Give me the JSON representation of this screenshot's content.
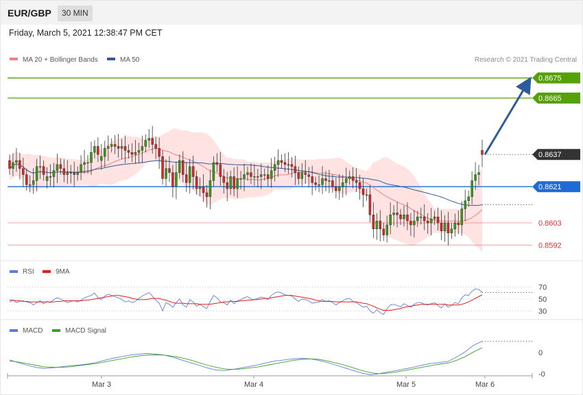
{
  "header": {
    "pair": "EUR/GBP",
    "timeframe": "30 MIN"
  },
  "timestamp": "Friday, March 5, 2021 12:38:47 PM CET",
  "chart_data": [
    {
      "type": "line",
      "panel": "price",
      "legend": [
        {
          "name": "MA 20 + Bollinger Bands",
          "color": "#f08080"
        },
        {
          "name": "MA 50",
          "color": "#2e5b9a"
        }
      ],
      "credit": "Research © 2021 Trading Central",
      "x_labels": [
        "Mar 3",
        "Mar 4",
        "Mar 5",
        "Mar 6"
      ],
      "ylim": [
        0.8587,
        0.868
      ],
      "candles_close": [
        0.863,
        0.8633,
        0.8634,
        0.863,
        0.8627,
        0.8622,
        0.8622,
        0.8624,
        0.8631,
        0.8631,
        0.8627,
        0.8626,
        0.8626,
        0.8629,
        0.8632,
        0.863,
        0.8627,
        0.8628,
        0.8628,
        0.8627,
        0.8628,
        0.8632,
        0.8633,
        0.8633,
        0.8638,
        0.8641,
        0.8637,
        0.8636,
        0.864,
        0.8641,
        0.8642,
        0.8641,
        0.864,
        0.8641,
        0.8639,
        0.8638,
        0.8637,
        0.8638,
        0.8639,
        0.8641,
        0.8644,
        0.8645,
        0.8642,
        0.864,
        0.8636,
        0.8625,
        0.863,
        0.8628,
        0.8621,
        0.8628,
        0.8634,
        0.8627,
        0.8623,
        0.8631,
        0.8626,
        0.862,
        0.8621,
        0.8618,
        0.8616,
        0.8624,
        0.8633,
        0.8632,
        0.8626,
        0.8623,
        0.862,
        0.8626,
        0.862,
        0.8625,
        0.8625,
        0.8627,
        0.8628,
        0.8626,
        0.8626,
        0.8626,
        0.8627,
        0.8627,
        0.8625,
        0.8629,
        0.8632,
        0.8634,
        0.8633,
        0.8632,
        0.8632,
        0.8631,
        0.8628,
        0.8625,
        0.8628,
        0.8627,
        0.8626,
        0.8623,
        0.8622,
        0.8622,
        0.8625,
        0.8624,
        0.8624,
        0.8621,
        0.8619,
        0.8621,
        0.8623,
        0.8625,
        0.8626,
        0.8624,
        0.8623,
        0.862,
        0.8617,
        0.8617,
        0.8607,
        0.86,
        0.8604,
        0.86,
        0.8597,
        0.8602,
        0.8607,
        0.8608,
        0.8607,
        0.8605,
        0.8607,
        0.8604,
        0.8602,
        0.8604,
        0.8606,
        0.8606,
        0.8604,
        0.8603,
        0.8605,
        0.8606,
        0.8603,
        0.8599,
        0.8603,
        0.8598,
        0.86,
        0.8603,
        0.8602,
        0.861,
        0.8614,
        0.8616,
        0.8624,
        0.8627,
        0.8628,
        0.8637
      ],
      "candles_bull": [
        false,
        true,
        true,
        false,
        false,
        false,
        true,
        true,
        true,
        false,
        false,
        true,
        true,
        true,
        true,
        false,
        false,
        true,
        true,
        false,
        true,
        true,
        true,
        true,
        true,
        true,
        false,
        true,
        true,
        true,
        true,
        false,
        false,
        true,
        false,
        false,
        false,
        true,
        true,
        true,
        true,
        true,
        false,
        false,
        false,
        false,
        true,
        false,
        false,
        true,
        true,
        false,
        false,
        true,
        false,
        false,
        true,
        false,
        false,
        true,
        true,
        false,
        false,
        false,
        false,
        true,
        false,
        true,
        true,
        true,
        true,
        false,
        true,
        false,
        true,
        true,
        false,
        true,
        true,
        true,
        false,
        false,
        false,
        false,
        false,
        false,
        true,
        false,
        false,
        false,
        false,
        true,
        true,
        false,
        true,
        false,
        false,
        true,
        true,
        true,
        true,
        false,
        false,
        false,
        false,
        true,
        false,
        false,
        true,
        false,
        false,
        true,
        true,
        true,
        false,
        false,
        true,
        false,
        false,
        true,
        true,
        true,
        false,
        false,
        true,
        true,
        false,
        false,
        true,
        false,
        true,
        true,
        false,
        true,
        true,
        true,
        true,
        true,
        true,
        false
      ],
      "price_levels": [
        {
          "label": "0.8675",
          "value": 0.8675,
          "color": "#56a10a"
        },
        {
          "label": "0.8665",
          "value": 0.8665,
          "color": "#56a10a"
        },
        {
          "label": "0.8637",
          "value": 0.8637,
          "color": "#333333"
        },
        {
          "label": "0.8621",
          "value": 0.8621,
          "color": "#1e6bd6"
        },
        {
          "label": "0.8603",
          "value": 0.8603,
          "color": "#e03030"
        },
        {
          "label": "0.8592",
          "value": 0.8592,
          "color": "#e03030"
        }
      ]
    },
    {
      "type": "line",
      "panel": "RSI",
      "series": [
        {
          "name": "RSI",
          "color": "#5b7fd6"
        },
        {
          "name": "9MA",
          "color": "#e02020"
        }
      ],
      "y_ticks": [
        70,
        50,
        30
      ],
      "ylim": [
        20,
        80
      ],
      "rsi": [
        45,
        48,
        44,
        46,
        47,
        45,
        44,
        40,
        44,
        47,
        42,
        46,
        44,
        49,
        52,
        50,
        47,
        44,
        46,
        47,
        45,
        48,
        52,
        54,
        56,
        60,
        52,
        49,
        55,
        58,
        56,
        54,
        52,
        49,
        45,
        47,
        44,
        46,
        51,
        55,
        58,
        61,
        55,
        48,
        43,
        30,
        44,
        41,
        36,
        44,
        50,
        40,
        36,
        49,
        45,
        38,
        41,
        37,
        34,
        46,
        56,
        52,
        45,
        44,
        40,
        48,
        42,
        47,
        49,
        52,
        54,
        50,
        49,
        51,
        53,
        52,
        49,
        56,
        60,
        62,
        60,
        57,
        56,
        55,
        50,
        46,
        50,
        49,
        47,
        43,
        44,
        45,
        49,
        46,
        47,
        44,
        40,
        44,
        47,
        50,
        51,
        46,
        44,
        40,
        36,
        38,
        30,
        26,
        32,
        27,
        24,
        34,
        40,
        41,
        39,
        37,
        42,
        39,
        36,
        41,
        44,
        44,
        41,
        40,
        42,
        44,
        39,
        35,
        42,
        36,
        39,
        44,
        42,
        52,
        57,
        56,
        63,
        67,
        66,
        61
      ],
      "ma9": [
        48,
        48,
        47,
        47,
        46,
        46,
        45,
        45,
        45,
        45,
        45,
        45,
        45,
        45,
        46,
        46,
        47,
        47,
        47,
        47,
        47,
        47,
        48,
        48,
        49,
        50,
        51,
        52,
        53,
        54,
        55,
        56,
        56,
        55,
        54,
        53,
        51,
        50,
        49,
        49,
        49,
        50,
        51,
        51,
        51,
        49,
        48,
        46,
        44,
        43,
        43,
        43,
        42,
        42,
        42,
        42,
        41,
        41,
        41,
        41,
        42,
        43,
        44,
        45,
        45,
        46,
        46,
        46,
        47,
        47,
        48,
        48,
        49,
        49,
        50,
        51,
        51,
        52,
        53,
        54,
        55,
        56,
        56,
        56,
        55,
        54,
        53,
        52,
        51,
        50,
        48,
        47,
        46,
        46,
        46,
        46,
        45,
        45,
        45,
        45,
        45,
        45,
        45,
        44,
        43,
        42,
        40,
        38,
        35,
        33,
        31,
        31,
        31,
        32,
        33,
        34,
        36,
        37,
        38,
        39,
        40,
        41,
        41,
        41,
        41,
        41,
        41,
        41,
        41,
        40,
        40,
        40,
        40,
        41,
        43,
        45,
        48,
        51,
        54,
        57
      ]
    },
    {
      "type": "line",
      "panel": "MACD",
      "series": [
        {
          "name": "MACD",
          "color": "#5b7fd6"
        },
        {
          "name": "MACD Signal",
          "color": "#3ea020"
        }
      ],
      "y_ticks": [
        "0",
        "-0"
      ],
      "ylim": [
        -0.0006,
        0.0009
      ],
      "macd": [
        0.0,
        -0.0001,
        -0.0002,
        -0.00028,
        -0.00032,
        -0.0003,
        -0.00026,
        -0.00022,
        -0.0002,
        -0.00016,
        -0.0001,
        -2e-05,
        6e-05,
        0.00012,
        0.00018,
        0.00022,
        0.00024,
        0.00022,
        0.00018,
        0.0001,
        0.0,
        -0.0001,
        -0.0002,
        -0.0003,
        -0.00038,
        -0.0004,
        -0.00036,
        -0.0003,
        -0.00024,
        -0.00018,
        -0.0001,
        -4e-05,
        0.0,
        4e-05,
        6e-05,
        4e-05,
        -2e-05,
        -0.0001,
        -0.0002,
        -0.0003,
        -0.0004,
        -0.0005,
        -0.00056,
        -0.00052,
        -0.00046,
        -0.0004,
        -0.00034,
        -0.00028,
        -0.0002,
        -0.00014,
        -0.0001,
        -6e-05,
        0.0001,
        0.0003,
        0.00055,
        0.0007
      ],
      "signal": [
        -4e-05,
        -8e-05,
        -0.00014,
        -0.0002,
        -0.00026,
        -0.00028,
        -0.00028,
        -0.00026,
        -0.00022,
        -0.00018,
        -0.00014,
        -8e-05,
        -2e-05,
        4e-05,
        0.0001,
        0.00015,
        0.00018,
        0.00019,
        0.00018,
        0.00014,
        8e-05,
        0.0,
        -0.0001,
        -0.0002,
        -0.00028,
        -0.00034,
        -0.00036,
        -0.00034,
        -0.0003,
        -0.00026,
        -0.0002,
        -0.00014,
        -8e-05,
        -2e-05,
        2e-05,
        4e-05,
        2e-05,
        -4e-05,
        -0.00012,
        -0.0002,
        -0.0003,
        -0.0004,
        -0.00048,
        -0.00052,
        -0.0005,
        -0.00046,
        -0.0004,
        -0.00034,
        -0.00028,
        -0.00022,
        -0.00016,
        -0.00012,
        -2e-05,
        0.00012,
        0.0003,
        0.00046
      ]
    }
  ]
}
